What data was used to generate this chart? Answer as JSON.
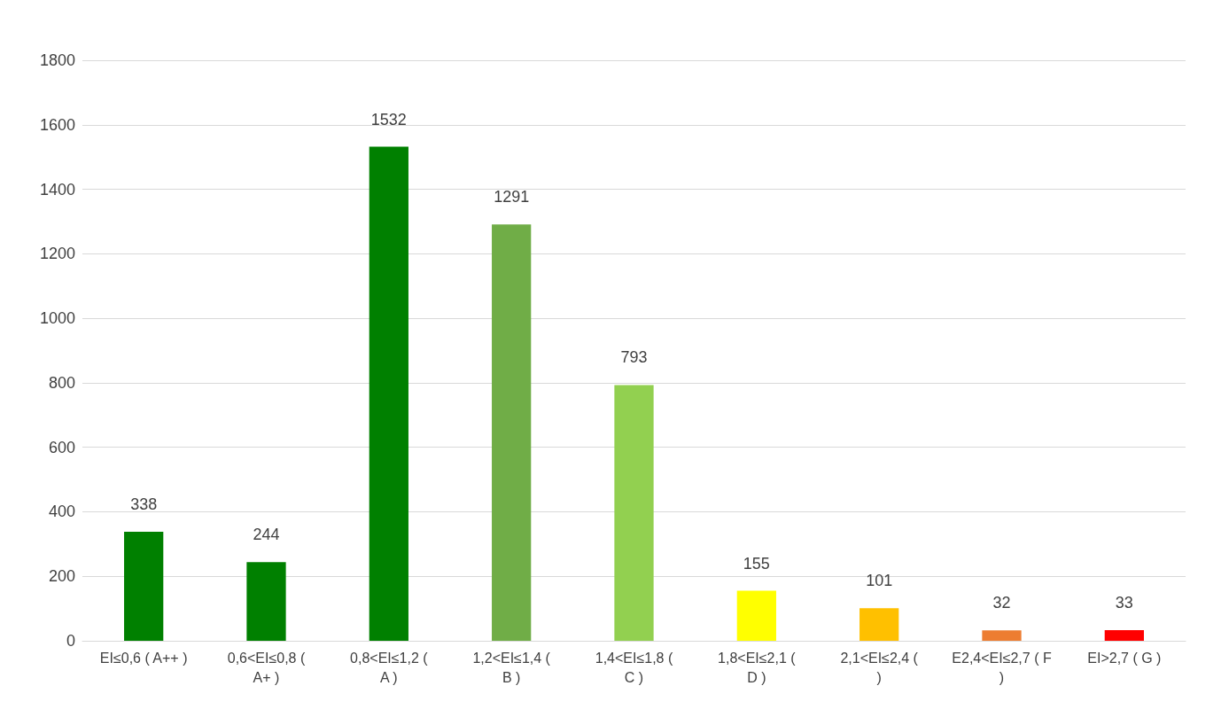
{
  "chart_data": {
    "type": "bar",
    "categories": [
      "EI≤0,6 ( A++ )",
      "0,6<EI≤0,8 (\nA+ )",
      "0,8<EI≤1,2 (\nA )",
      "1,2<EI≤1,4 (\nB )",
      "1,4<EI≤1,8 (\nC )",
      "1,8<EI≤2,1 (\nD )",
      "2,1<EI≤2,4 (\n)",
      "E2,4<EI≤2,7 ( F\n)",
      "EI>2,7 ( G )"
    ],
    "values": [
      338,
      244,
      1532,
      1291,
      793,
      155,
      101,
      32,
      33
    ],
    "colors": [
      "#008000",
      "#008000",
      "#008000",
      "#70ad47",
      "#92d050",
      "#ffff00",
      "#ffc000",
      "#ed7d31",
      "#ff0000"
    ],
    "ylim": [
      0,
      1800
    ],
    "yticks": [
      0,
      200,
      400,
      600,
      800,
      1000,
      1200,
      1400,
      1600,
      1800
    ],
    "grid": "y",
    "data_labels": true
  }
}
